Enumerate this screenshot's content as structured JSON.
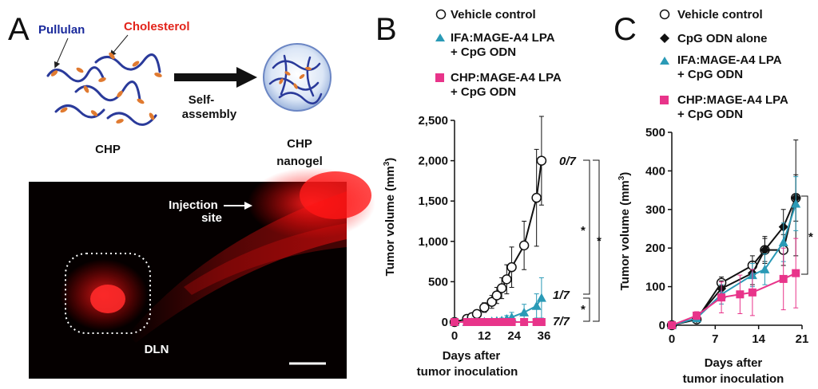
{
  "panels": {
    "a": "A",
    "b": "B",
    "c": "C"
  },
  "panel_a": {
    "pullulan_label": "Pullulan",
    "cholesterol_label": "Cholesterol",
    "assembly_label_1": "Self-",
    "assembly_label_2": "assembly",
    "chp_label": "CHP",
    "nanogel_label_1": "CHP",
    "nanogel_label_2": "nanogel",
    "injection_label_1": "Injection",
    "injection_label_2": "site",
    "dln_label": "DLN",
    "colors": {
      "pullulan": "#1a2a9c",
      "cholesterol": "#e2231a",
      "chain": "#2a3a9a",
      "ester": "#e07a30",
      "micro_bg": "#050000",
      "micro_signal": "#ff1a1a"
    }
  },
  "chart_data": [
    {
      "type": "line",
      "panel": "B",
      "xlabel": "Days after tumor inoculation",
      "xlabel_lines": [
        "Days after",
        "tumor inoculation"
      ],
      "ylabel": "Tumor volume (mm3)",
      "ylabel_base": "Tumor volume (mm",
      "ylabel_sup": "3",
      "ylabel_close": ")",
      "xlim": [
        0,
        36
      ],
      "ylim": [
        0,
        2500
      ],
      "xticks": [
        0,
        12,
        24,
        36
      ],
      "yticks": [
        0,
        500,
        1000,
        1500,
        2000,
        2500
      ],
      "ytick_labels": [
        "0",
        "500",
        "1,000",
        "1,500",
        "2,000",
        "2,500"
      ],
      "series": [
        {
          "name": "Vehicle control",
          "marker": "circle-open",
          "color": "#111111",
          "x": [
            0,
            5,
            7,
            9,
            12,
            15,
            17,
            19,
            21,
            23,
            28,
            33,
            35
          ],
          "y": [
            0,
            40,
            60,
            100,
            180,
            250,
            330,
            420,
            530,
            680,
            950,
            1540,
            2000
          ],
          "err": [
            0,
            20,
            30,
            50,
            60,
            80,
            100,
            130,
            180,
            250,
            300,
            600,
            550
          ],
          "annotation": "0/7"
        },
        {
          "name": "IFA:MAGE-A4 LPA + CpG ODN",
          "legend_lines": [
            "IFA:MAGE-A4 LPA",
            "+ CpG ODN"
          ],
          "marker": "triangle",
          "color": "#2a9ab6",
          "x": [
            0,
            5,
            7,
            9,
            12,
            15,
            17,
            19,
            21,
            23,
            28,
            33,
            35
          ],
          "y": [
            0,
            0,
            0,
            0,
            5,
            10,
            15,
            20,
            40,
            60,
            120,
            200,
            300
          ],
          "err": [
            0,
            0,
            0,
            0,
            10,
            15,
            20,
            30,
            40,
            60,
            100,
            150,
            250
          ],
          "annotation": "1/7"
        },
        {
          "name": "CHP:MAGE-A4 LPA + CpG ODN",
          "legend_lines": [
            "CHP:MAGE-A4 LPA",
            "+ CpG ODN"
          ],
          "marker": "square",
          "color": "#e8348a",
          "x": [
            0,
            5,
            7,
            9,
            12,
            15,
            17,
            19,
            21,
            23,
            28,
            33,
            35
          ],
          "y": [
            0,
            0,
            0,
            0,
            0,
            0,
            0,
            0,
            0,
            0,
            0,
            0,
            0
          ],
          "err": [
            0,
            0,
            0,
            0,
            0,
            0,
            0,
            0,
            0,
            0,
            0,
            0,
            0
          ],
          "annotation": "7/7"
        }
      ],
      "significance": [
        "*",
        "*",
        "*"
      ]
    },
    {
      "type": "line",
      "panel": "C",
      "xlabel": "Days after tumor inoculation",
      "xlabel_lines": [
        "Days after",
        "tumor inoculation"
      ],
      "ylabel": "Tumor volume (mm3)",
      "ylabel_base": "Tumor volume (mm",
      "ylabel_sup": "3",
      "ylabel_close": ")",
      "xlim": [
        0,
        21
      ],
      "ylim": [
        0,
        500
      ],
      "xticks": [
        0,
        7,
        14,
        21
      ],
      "yticks": [
        0,
        100,
        200,
        300,
        400,
        500
      ],
      "ytick_labels": [
        "0",
        "100",
        "200",
        "300",
        "400",
        "500"
      ],
      "series": [
        {
          "name": "Vehicle control",
          "marker": "circle-open",
          "color": "#111111",
          "x": [
            0,
            4,
            8,
            13,
            15,
            18,
            20
          ],
          "y": [
            0,
            15,
            110,
            155,
            195,
            195,
            330
          ],
          "err": [
            0,
            8,
            15,
            25,
            30,
            40,
            150
          ]
        },
        {
          "name": "CpG ODN alone",
          "marker": "diamond",
          "color": "#111111",
          "x": [
            0,
            4,
            8,
            13,
            15,
            18,
            20
          ],
          "y": [
            0,
            18,
            95,
            135,
            195,
            255,
            330
          ],
          "err": [
            0,
            8,
            20,
            30,
            35,
            45,
            60
          ]
        },
        {
          "name": "IFA:MAGE-A4 LPA + CpG ODN",
          "legend_lines": [
            "IFA:MAGE-A4 LPA",
            "+ CpG ODN"
          ],
          "marker": "triangle",
          "color": "#2a9ab6",
          "x": [
            0,
            4,
            8,
            13,
            15,
            18,
            20
          ],
          "y": [
            0,
            18,
            80,
            130,
            145,
            215,
            315
          ],
          "err": [
            0,
            8,
            25,
            30,
            40,
            50,
            70
          ]
        },
        {
          "name": "CHP:MAGE-A4 LPA + CpG ODN",
          "legend_lines": [
            "CHP:MAGE-A4 LPA",
            "+ CpG ODN"
          ],
          "marker": "square",
          "color": "#e8348a",
          "x": [
            0,
            4,
            8,
            11,
            13,
            18,
            20
          ],
          "y": [
            0,
            25,
            72,
            80,
            85,
            120,
            135
          ],
          "err": [
            0,
            10,
            40,
            50,
            60,
            80,
            90
          ]
        }
      ],
      "significance": [
        "*"
      ]
    }
  ]
}
